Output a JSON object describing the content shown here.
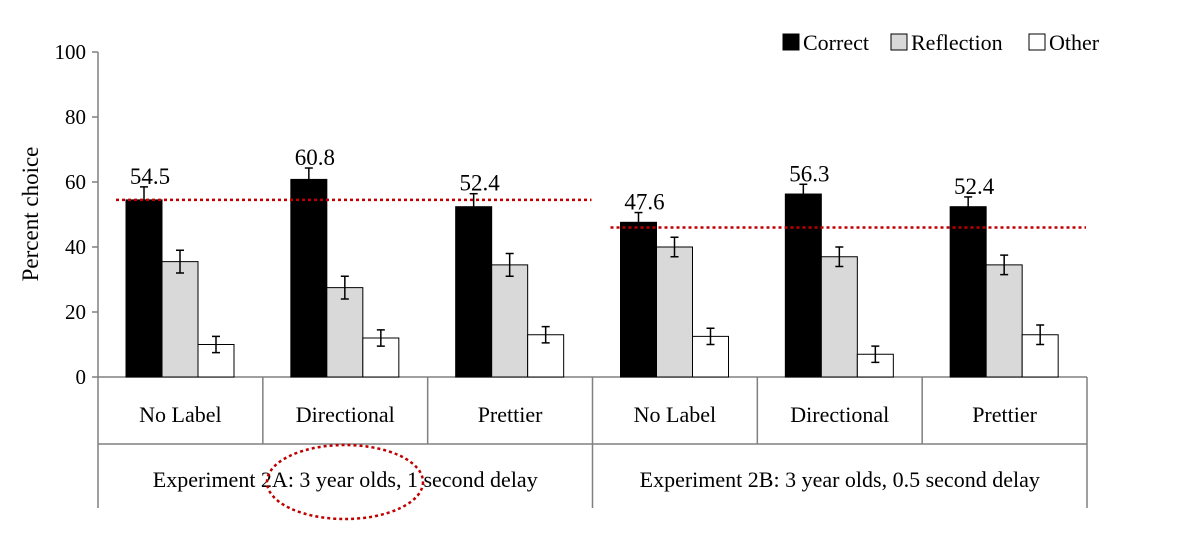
{
  "chart_data": {
    "type": "bar",
    "ylabel": "Percent choice",
    "ylim": [
      0,
      100
    ],
    "yticks": [
      0,
      20,
      40,
      60,
      80,
      100
    ],
    "legend_position": "top-right",
    "groups": [
      {
        "label": "Experiment 2A: 3 year olds, 1 second delay",
        "categories": [
          "No Label",
          "Directional",
          "Prettier"
        ],
        "chance_line": 54.5
      },
      {
        "label": "Experiment 2B: 3 year olds, 0.5 second delay",
        "categories": [
          "No Label",
          "Directional",
          "Prettier"
        ],
        "chance_line": 46
      }
    ],
    "categories": [
      "No Label",
      "Directional",
      "Prettier",
      "No Label",
      "Directional",
      "Prettier"
    ],
    "series": [
      {
        "name": "Correct",
        "color": "#000000",
        "values": [
          54.5,
          60.8,
          52.4,
          47.6,
          56.3,
          52.4
        ],
        "errors": [
          4,
          3.5,
          4,
          3,
          3,
          3
        ]
      },
      {
        "name": "Reflection",
        "color": "#d9d9d9",
        "values": [
          35.5,
          27.5,
          34.5,
          40,
          37,
          34.5
        ],
        "errors": [
          3.5,
          3.5,
          3.5,
          3,
          3,
          3
        ]
      },
      {
        "name": "Other",
        "color": "#ffffff",
        "values": [
          10,
          12,
          13,
          12.5,
          7,
          13
        ],
        "errors": [
          2.5,
          2.5,
          2.5,
          2.5,
          2.5,
          3
        ]
      }
    ],
    "data_labels": [
      "54.5",
      "60.8",
      "52.4",
      "47.6",
      "56.3",
      "52.4"
    ],
    "reference_line_color": "#c00000",
    "highlight_color": "#c00000"
  }
}
